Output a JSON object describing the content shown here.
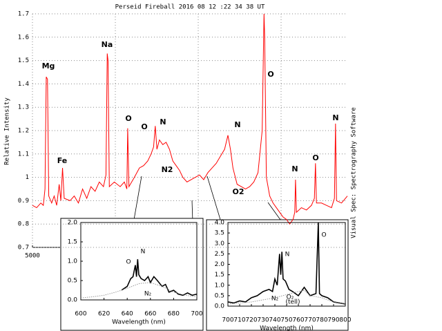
{
  "chart_data": [
    {
      "type": "line",
      "title": "Perseid Fireball 2016 08 12 :22 34 38 UT",
      "ylabel": "Relative Intensity",
      "side_note": "Visual Spec: Spectrography Software",
      "x": [
        5000,
        5050,
        5100,
        5130,
        5150,
        5165,
        5180,
        5195,
        5230,
        5260,
        5290,
        5320,
        5340,
        5360,
        5380,
        5450,
        5500,
        5550,
        5600,
        5650,
        5700,
        5750,
        5800,
        5850,
        5880,
        5895,
        5905,
        5920,
        5980,
        6050,
        6100,
        6130,
        6140,
        6155,
        6220,
        6280,
        6330,
        6380,
        6420,
        6450,
        6470,
        6490,
        6520,
        6560,
        6600,
        6640,
        6680,
        6720,
        6760,
        6800,
        6850,
        6900,
        6950,
        7000,
        7050,
        7100,
        7150,
        7200,
        7250,
        7300,
        7340,
        7370,
        7400,
        7450,
        7500,
        7550,
        7600,
        7650,
        7700,
        7750,
        7772,
        7780,
        7800,
        7840,
        7880,
        7920,
        7960,
        8000,
        8040,
        8080,
        8120,
        8140,
        8149,
        8160,
        8220,
        8280,
        8340,
        8375,
        8388,
        8400,
        8460,
        8520,
        8580,
        8615,
        8628,
        8640,
        8700,
        8770
      ],
      "series": [
        {
          "color": "#ff0000",
          "values": [
            0.88,
            0.87,
            0.89,
            0.88,
            0.95,
            1.43,
            1.42,
            0.92,
            0.89,
            0.92,
            0.88,
            0.97,
            0.9,
            1.04,
            0.91,
            0.9,
            0.92,
            0.89,
            0.95,
            0.91,
            0.96,
            0.94,
            0.98,
            0.96,
            1.01,
            1.53,
            1.5,
            0.96,
            0.98,
            0.96,
            0.98,
            0.95,
            1.21,
            0.96,
            1.0,
            1.04,
            1.05,
            1.07,
            1.1,
            1.13,
            1.22,
            1.12,
            1.16,
            1.14,
            1.15,
            1.12,
            1.07,
            1.05,
            1.03,
            1.0,
            0.98,
            0.99,
            1.0,
            1.01,
            0.99,
            1.02,
            1.04,
            1.06,
            1.09,
            1.12,
            1.18,
            1.12,
            1.04,
            0.97,
            0.96,
            0.95,
            0.96,
            0.98,
            1.02,
            1.2,
            1.7,
            1.6,
            1.0,
            0.92,
            0.89,
            0.87,
            0.85,
            0.83,
            0.82,
            0.8,
            0.82,
            0.85,
            0.99,
            0.85,
            0.87,
            0.86,
            0.88,
            0.91,
            1.06,
            0.89,
            0.89,
            0.88,
            0.87,
            0.91,
            1.23,
            0.9,
            0.89,
            0.92
          ]
        }
      ],
      "xlim": [
        5000,
        8770
      ],
      "xticks": [
        5000
      ],
      "ylim": [
        0.7,
        1.7
      ],
      "yticks": [
        0.7,
        0.8,
        0.9,
        1,
        1.1,
        1.2,
        1.3,
        1.4,
        1.5,
        1.6,
        1.7
      ],
      "grid": true,
      "annotations": [
        "Mg",
        "Fe",
        "Na",
        "O",
        "O",
        "N",
        "N2",
        "N",
        "O2",
        "O",
        "N",
        "O",
        "N"
      ]
    },
    {
      "type": "line",
      "xlabel": "Wavelength (nm)",
      "series": [
        {
          "color": "#000000",
          "x": [
            635,
            640,
            643,
            645,
            647,
            648,
            649,
            650,
            652,
            655,
            658,
            660,
            663,
            666,
            670,
            673,
            676,
            680,
            684,
            688,
            692,
            696,
            700
          ],
          "values": [
            0.25,
            0.35,
            0.55,
            0.6,
            0.9,
            0.6,
            1.05,
            0.65,
            0.55,
            0.5,
            0.6,
            0.45,
            0.6,
            0.5,
            0.35,
            0.4,
            0.2,
            0.25,
            0.15,
            0.12,
            0.18,
            0.12,
            0.15
          ]
        },
        {
          "color": "#999999",
          "style": "dotted",
          "x": [
            600,
            610,
            620,
            630,
            640,
            650,
            660,
            670,
            680,
            690,
            700
          ],
          "values": [
            0.05,
            0.08,
            0.12,
            0.2,
            0.3,
            0.42,
            0.45,
            0.35,
            0.2,
            0.12,
            0.08
          ]
        }
      ],
      "xlim": [
        600,
        700
      ],
      "xticks": [
        600,
        620,
        640,
        660,
        680,
        700
      ],
      "ylim": [
        0,
        2
      ],
      "yticks": [
        {
          "value": 0,
          "label": "0.0"
        },
        0.5,
        {
          "value": 1,
          "label": "1.0"
        },
        1.5,
        {
          "value": 2,
          "label": "2.0"
        }
      ],
      "annotations": [
        "O",
        "N",
        "N₂"
      ]
    },
    {
      "type": "line",
      "xlabel": "Wavelength (nm)",
      "series": [
        {
          "color": "#000000",
          "x": [
            700,
            705,
            710,
            715,
            720,
            725,
            730,
            735,
            738,
            740,
            742,
            744,
            745,
            746,
            747,
            749,
            752,
            755,
            760,
            765,
            770,
            775,
            777,
            778,
            780,
            785,
            790,
            795,
            800
          ],
          "values": [
            0.2,
            0.15,
            0.25,
            0.2,
            0.4,
            0.5,
            0.7,
            0.8,
            0.7,
            1.3,
            1.0,
            2.5,
            1.5,
            2.6,
            1.3,
            1.2,
            0.8,
            0.7,
            0.5,
            0.9,
            0.5,
            0.6,
            4.0,
            0.6,
            0.5,
            0.4,
            0.2,
            0.15,
            0.1
          ]
        },
        {
          "color": "#999999",
          "style": "dotted",
          "x": [
            700,
            720,
            740,
            760,
            765,
            770,
            780,
            790,
            800
          ],
          "values": [
            0.1,
            0.2,
            0.4,
            0.7,
            0.75,
            0.5,
            0.4,
            0.2,
            0.1
          ]
        }
      ],
      "xlim": [
        700,
        800
      ],
      "xticks": [
        700,
        710,
        720,
        730,
        740,
        750,
        760,
        770,
        780,
        790,
        800
      ],
      "ylim": [
        0,
        4
      ],
      "yticks": [
        {
          "value": 0,
          "label": "0.0"
        },
        0.5,
        {
          "value": 1,
          "label": "1.0"
        },
        1.5,
        {
          "value": 2,
          "label": "2.0"
        },
        2.5,
        {
          "value": 3,
          "label": "3.0"
        },
        3.5,
        {
          "value": 4,
          "label": "4.0"
        }
      ],
      "annotations": [
        "N",
        "N₂",
        "O₂",
        "(tell)",
        "O"
      ]
    }
  ]
}
